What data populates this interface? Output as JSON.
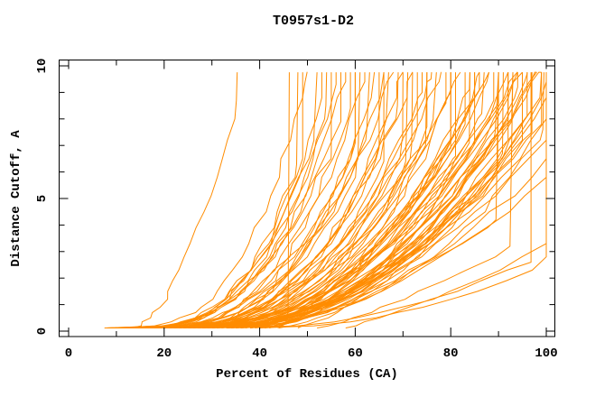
{
  "title": "T0957s1-D2",
  "chart_data": {
    "type": "line",
    "title": "T0957s1-D2",
    "xlabel": "Percent of Residues (CA)",
    "ylabel": "Distance Cutoff, A",
    "xlim": [
      -2,
      102
    ],
    "ylim": [
      -0.2,
      10.25
    ],
    "x_major_ticks": [
      0,
      20,
      40,
      60,
      80,
      100
    ],
    "x_tick_labels": [
      "0",
      "20",
      "40",
      "60",
      "80",
      "100"
    ],
    "x_minor_step": 10,
    "y_major_ticks": [
      0,
      5,
      10
    ],
    "y_tick_labels": [
      "0",
      "5",
      "10"
    ],
    "y_minor_step": 1,
    "grid": false,
    "legend": "none",
    "series_color": "#FF8C00",
    "axis_color": "#000000",
    "background": "#FFFFFF",
    "curve_start_cutoff": 0.12,
    "curve_top_cutoff": 9.76,
    "curve_sample_cutoffs": [
      0.12,
      0.2,
      0.35,
      0.5,
      0.7,
      0.9,
      1.2,
      1.5,
      1.9,
      2.3,
      2.8,
      3.3,
      3.9,
      4.5,
      5.1,
      5.8,
      6.5,
      7.2,
      8.0,
      8.8,
      9.4
    ],
    "curves_note_fields": [
      "start_percent",
      "end_percent",
      "shape_exponent",
      "saturation_cutoff"
    ],
    "curves": [
      [
        13,
        35.3,
        0.55,
        8.7
      ],
      [
        43.8,
        46.2,
        0.25,
        0.9
      ],
      [
        40,
        160,
        0.5,
        9.76
      ],
      [
        35,
        118,
        0.55,
        9.76
      ],
      [
        30,
        112,
        0.5,
        9.76
      ],
      [
        38,
        124,
        0.6,
        9.76
      ],
      [
        25,
        108,
        0.45,
        9.76
      ],
      [
        33,
        140,
        0.42,
        9.76
      ],
      [
        36,
        104,
        0.5,
        9.76
      ],
      [
        28,
        102,
        0.38,
        9.76
      ],
      [
        58,
        96.8,
        0.9,
        2.6
      ],
      [
        52,
        93,
        0.8,
        3.2
      ],
      [
        48,
        90,
        0.85,
        4.2
      ],
      [
        9,
        48,
        0.3,
        6.3
      ],
      [
        11,
        50,
        0.34,
        9.76
      ],
      [
        14,
        52,
        0.38,
        7.4
      ],
      [
        8,
        53,
        0.28,
        8.8
      ],
      [
        16,
        55,
        0.42,
        6.8
      ],
      [
        12,
        56,
        0.33,
        9.3
      ],
      [
        18,
        57,
        0.45,
        7.9
      ],
      [
        10,
        58,
        0.31,
        9.76
      ],
      [
        20,
        59,
        0.4,
        8.4
      ],
      [
        15,
        60,
        0.36,
        7.1
      ],
      [
        22,
        61,
        0.44,
        6.5
      ],
      [
        13,
        62,
        0.32,
        9.76
      ],
      [
        25,
        63,
        0.47,
        7.6
      ],
      [
        17,
        64,
        0.38,
        8.9
      ],
      [
        11,
        65,
        0.3,
        6.9
      ],
      [
        24,
        66,
        0.43,
        9.4
      ],
      [
        19,
        67,
        0.36,
        8.0
      ],
      [
        14,
        68,
        0.33,
        9.76
      ],
      [
        27,
        69,
        0.48,
        8.5
      ],
      [
        16,
        70,
        0.37,
        7.2
      ],
      [
        21,
        71,
        0.41,
        6.4
      ],
      [
        12,
        72,
        0.31,
        9.76
      ],
      [
        28,
        73,
        0.46,
        7.7
      ],
      [
        18,
        74,
        0.36,
        9.0
      ],
      [
        23,
        75,
        0.42,
        7.0
      ],
      [
        15,
        76,
        0.33,
        9.5
      ],
      [
        30,
        77,
        0.5,
        8.1
      ],
      [
        20,
        78,
        0.38,
        9.76
      ],
      [
        26,
        79,
        0.44,
        8.6
      ],
      [
        17,
        80,
        0.34,
        7.3
      ],
      [
        22,
        81,
        0.4,
        6.6
      ],
      [
        13,
        82,
        0.3,
        9.76
      ],
      [
        29,
        83,
        0.47,
        7.8
      ],
      [
        19,
        84,
        0.36,
        9.1
      ],
      [
        24,
        85,
        0.42,
        7.1
      ],
      [
        16,
        86,
        0.32,
        9.6
      ],
      [
        31,
        87,
        0.49,
        8.2
      ],
      [
        21,
        88,
        0.38,
        9.76
      ],
      [
        27,
        89,
        0.44,
        8.7
      ],
      [
        18,
        90,
        0.34,
        7.5
      ],
      [
        23,
        91,
        0.4,
        6.7
      ],
      [
        14,
        92,
        0.3,
        9.76
      ],
      [
        32,
        93,
        0.48,
        7.9
      ],
      [
        20,
        94,
        0.36,
        9.2
      ],
      [
        25,
        95,
        0.41,
        7.2
      ],
      [
        17,
        96,
        0.32,
        9.7
      ],
      [
        33,
        97,
        0.5,
        8.3
      ],
      [
        22,
        98,
        0.38,
        9.76
      ],
      [
        28,
        99,
        0.43,
        8.8
      ],
      [
        19,
        99.5,
        0.33,
        7.6
      ],
      [
        35,
        90,
        0.55,
        6.2
      ],
      [
        38,
        94,
        0.58,
        9.76
      ],
      [
        40,
        97,
        0.6,
        7.5
      ],
      [
        36,
        85,
        0.52,
        8.9
      ],
      [
        34,
        80,
        0.5,
        6.9
      ],
      [
        37,
        88,
        0.55,
        9.4
      ],
      [
        39,
        92,
        0.57,
        8.0
      ],
      [
        41,
        99,
        0.62,
        9.76
      ],
      [
        10,
        54,
        0.29,
        8.5
      ],
      [
        9,
        60,
        0.27,
        7.2
      ],
      [
        8,
        66,
        0.26,
        6.4
      ],
      [
        11,
        70,
        0.28,
        9.76
      ],
      [
        12,
        75,
        0.29,
        7.7
      ],
      [
        10,
        80,
        0.27,
        9.0
      ],
      [
        9,
        72,
        0.26,
        7.0
      ],
      [
        26,
        94,
        0.4,
        9.5
      ],
      [
        29,
        96,
        0.42,
        8.1
      ],
      [
        31,
        98,
        0.45,
        9.76
      ],
      [
        24,
        90,
        0.38,
        8.6
      ],
      [
        27,
        92,
        0.41,
        7.3
      ],
      [
        7.5,
        49,
        0.27,
        6.6
      ],
      [
        42,
        95,
        0.6,
        9.76
      ],
      [
        44,
        99,
        0.62,
        7.8
      ],
      [
        34,
        86,
        0.51,
        9.1
      ],
      [
        30,
        84,
        0.46,
        7.1
      ]
    ]
  }
}
